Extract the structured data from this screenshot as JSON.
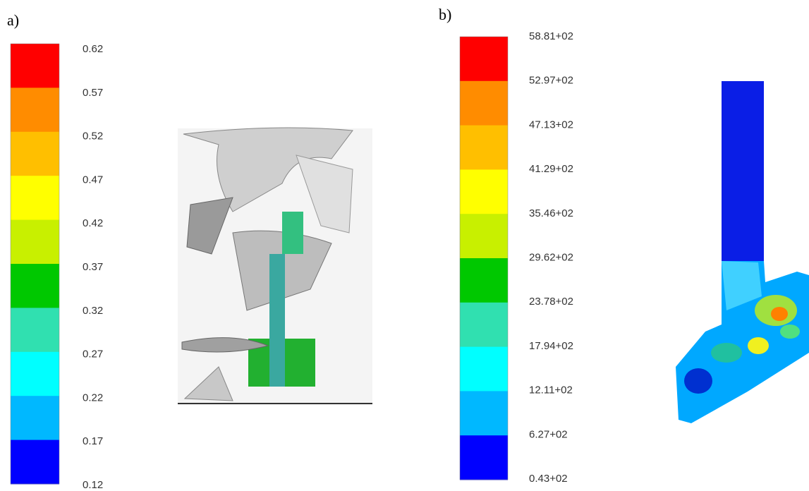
{
  "panels": [
    {
      "label": "a)",
      "scale": [
        "0.62",
        "0.57",
        "0.52",
        "0.47",
        "0.42",
        "0.37",
        "0.32",
        "0.27",
        "0.22",
        "0.17",
        "0.12"
      ]
    },
    {
      "label": "b)",
      "scale": [
        "58.81+02",
        "52.97+02",
        "47.13+02",
        "41.29+02",
        "35.46+02",
        "29.62+02",
        "23.78+02",
        "17.94+02",
        "12.11+02",
        "6.27+02",
        "0.43+02"
      ]
    }
  ]
}
